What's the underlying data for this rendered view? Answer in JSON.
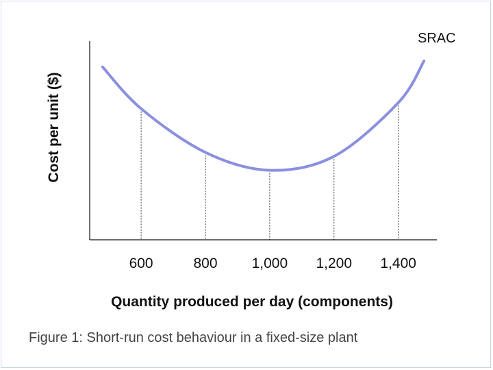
{
  "chart_data": {
    "type": "line",
    "title": "",
    "caption": "Figure 1: Short-run cost behaviour in a fixed-size plant",
    "xlabel": "Quantity produced per day (components)",
    "ylabel": "Cost per unit ($)",
    "x_ticks": [
      "600",
      "800",
      "1,000",
      "1,200",
      "1,400"
    ],
    "x_tick_values": [
      600,
      800,
      1000,
      1200,
      1400
    ],
    "y_ticks": [],
    "series": [
      {
        "name": "SRAC",
        "color": "#8a8fe0",
        "x": [
          480,
          600,
          800,
          1000,
          1200,
          1400,
          1480
        ],
        "y": [
          0.87,
          0.66,
          0.44,
          0.35,
          0.42,
          0.69,
          0.9
        ]
      }
    ],
    "dropline_x": [
      600,
      800,
      1000,
      1200,
      1400
    ],
    "xlim": [
      440,
      1520
    ],
    "ylim": [
      0,
      1
    ],
    "grid": false,
    "legend": "none"
  }
}
